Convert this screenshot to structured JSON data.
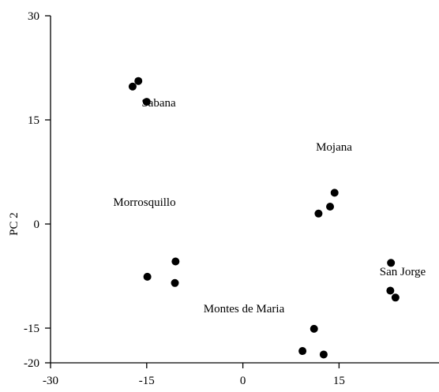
{
  "chart_data": {
    "type": "scatter",
    "title": "",
    "xlabel": "",
    "ylabel": "PC 2",
    "xlim": [
      -30,
      30
    ],
    "ylim": [
      -20,
      30
    ],
    "xticks": [
      -30,
      -15,
      0,
      15
    ],
    "yticks": [
      -20,
      -15,
      0,
      15,
      30
    ],
    "grid": false,
    "legend": "none",
    "point_color": "#000000",
    "groups": [
      {
        "label": "Sabana",
        "points": [
          [
            -17.2,
            19.8
          ],
          [
            -16.3,
            20.6
          ],
          [
            -15.0,
            17.6
          ]
        ]
      },
      {
        "label": "Mojana",
        "points": [
          [
            11.8,
            1.5
          ],
          [
            13.6,
            2.5
          ],
          [
            14.3,
            4.5
          ]
        ]
      },
      {
        "label": "Morrosquillo",
        "points": [
          [
            -14.9,
            -7.6
          ],
          [
            -10.5,
            -5.4
          ],
          [
            -10.6,
            -8.5
          ]
        ]
      },
      {
        "label": "San Jorge",
        "points": [
          [
            23.1,
            -5.6
          ],
          [
            23.0,
            -9.6
          ],
          [
            23.8,
            -10.6
          ]
        ]
      },
      {
        "label": "Montes de Maria",
        "points": [
          [
            9.3,
            -18.3
          ],
          [
            11.1,
            -15.1
          ],
          [
            12.6,
            -18.8
          ]
        ]
      }
    ]
  }
}
